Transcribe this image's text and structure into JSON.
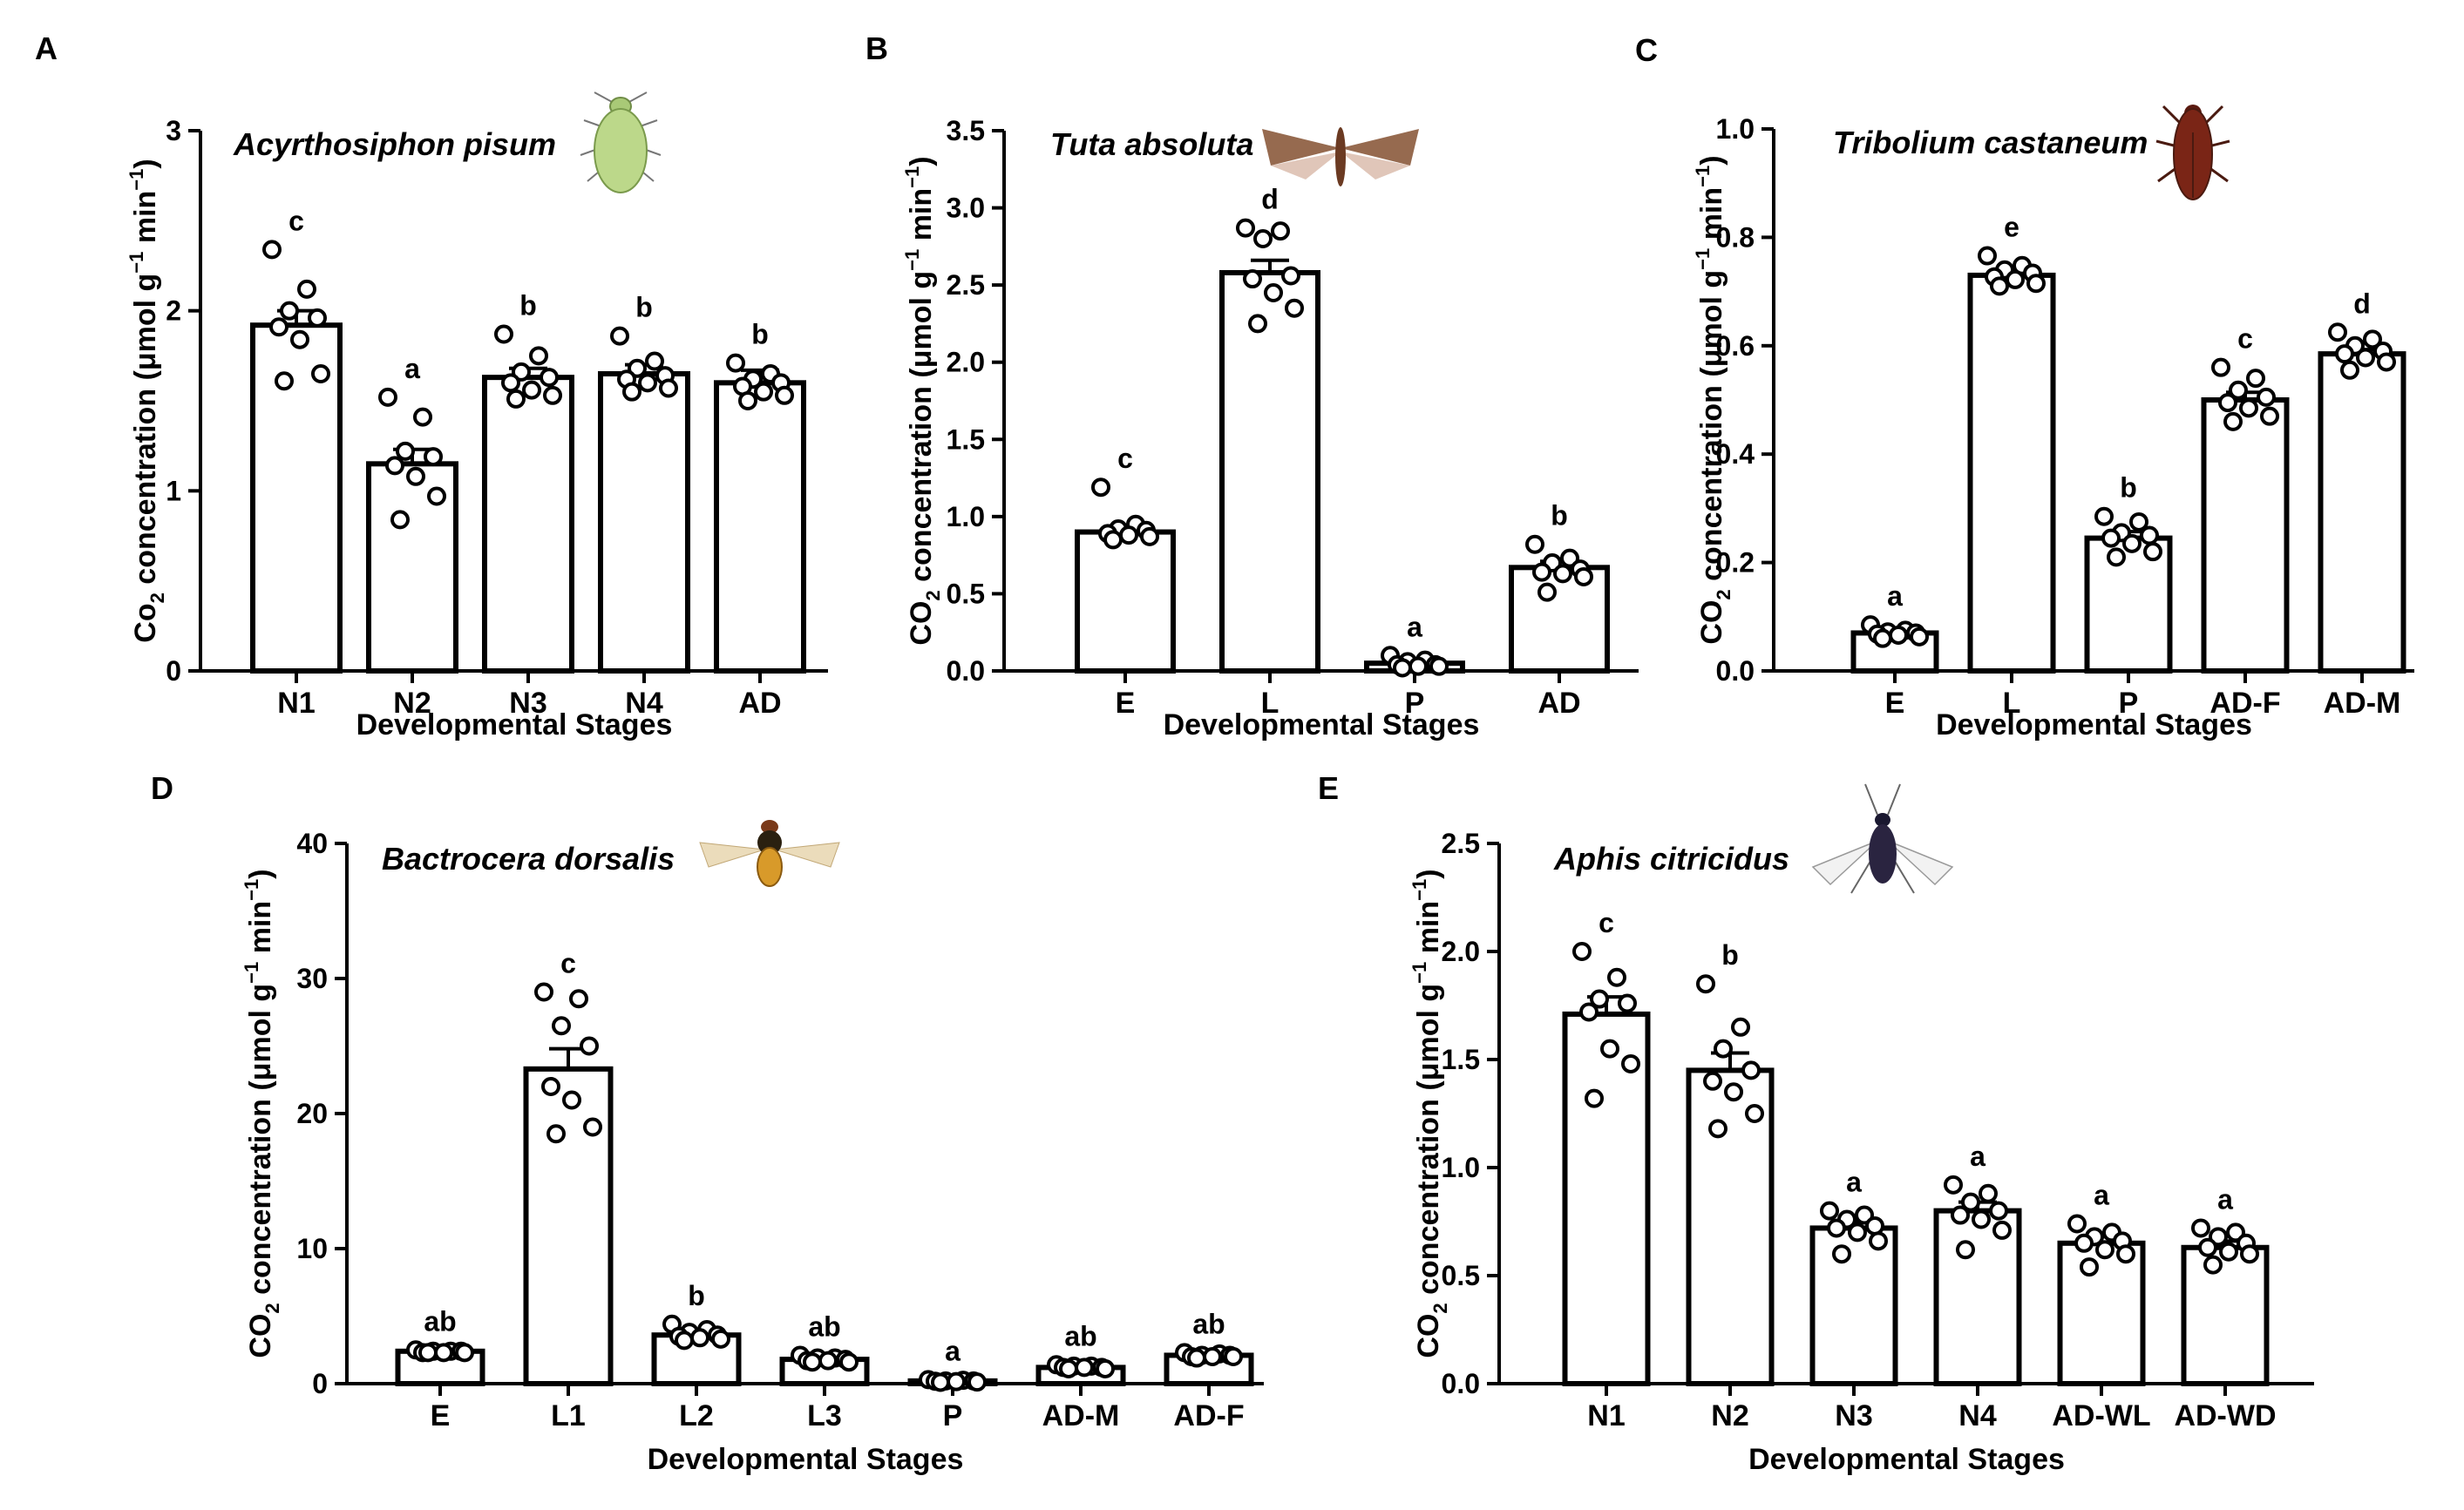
{
  "chart_data": [
    {
      "panel": "A",
      "type": "bar",
      "species": "Acyrthosiphon pisum",
      "title": "Acyrthosiphon pisum",
      "xlabel": "Developmental Stages",
      "ylabel": {
        "prefix": "Co",
        "sub": "2",
        "mid": " concentration (μmol g",
        "sup1": "−1",
        "mid2": " min",
        "sup2": "−1",
        "suffix": ")"
      },
      "ylim": [
        0,
        3
      ],
      "yticks": [
        0,
        1,
        2,
        3
      ],
      "ytick_labels": [
        "0",
        "1",
        "2",
        "3"
      ],
      "categories": [
        "N1",
        "N2",
        "N3",
        "N4",
        "AD"
      ],
      "values": [
        1.92,
        1.15,
        1.63,
        1.65,
        1.6
      ],
      "sem": [
        0.08,
        0.08,
        0.05,
        0.05,
        0.07
      ],
      "letters": [
        "c",
        "a",
        "b",
        "b",
        "b"
      ],
      "points": [
        [
          2.34,
          2.12,
          2.0,
          1.96,
          1.91,
          1.84,
          1.65,
          1.61
        ],
        [
          1.52,
          1.41,
          1.22,
          1.19,
          1.14,
          1.08,
          0.97,
          0.84
        ],
        [
          1.87,
          1.75,
          1.66,
          1.63,
          1.6,
          1.56,
          1.53,
          1.51
        ],
        [
          1.86,
          1.72,
          1.68,
          1.64,
          1.62,
          1.6,
          1.57,
          1.55
        ],
        [
          1.71,
          1.65,
          1.62,
          1.6,
          1.58,
          1.55,
          1.53,
          1.5
        ]
      ]
    },
    {
      "panel": "B",
      "type": "bar",
      "species": "Tuta absoluta",
      "title": "Tuta absoluta",
      "xlabel": "Developmental Stages",
      "ylabel": {
        "prefix": "CO",
        "sub": "2",
        "mid": " concentration (μmol g",
        "sup1": "−1",
        "mid2": " min",
        "sup2": "−1",
        "suffix": ")"
      },
      "ylim": [
        0,
        3.5
      ],
      "yticks": [
        0,
        0.5,
        1,
        1.5,
        2,
        2.5,
        3,
        3.5
      ],
      "ytick_labels": [
        "0.0",
        "0.5",
        "1.0",
        "1.5",
        "2.0",
        "2.5",
        "3.0",
        "3.5"
      ],
      "categories": [
        "E",
        "L",
        "P",
        "AD"
      ],
      "values": [
        0.9,
        2.58,
        0.05,
        0.67
      ],
      "sem": [
        0.03,
        0.08,
        0.01,
        0.04
      ],
      "letters": [
        "c",
        "d",
        "a",
        "b"
      ],
      "points": [
        [
          1.19,
          0.95,
          0.92,
          0.91,
          0.89,
          0.88,
          0.87,
          0.85
        ],
        [
          2.87,
          2.85,
          2.8,
          2.56,
          2.54,
          2.45,
          2.35,
          2.25
        ],
        [
          0.1,
          0.07,
          0.06,
          0.04,
          0.04,
          0.03,
          0.03,
          0.02
        ],
        [
          0.82,
          0.73,
          0.7,
          0.66,
          0.64,
          0.63,
          0.61,
          0.51
        ]
      ]
    },
    {
      "panel": "C",
      "type": "bar",
      "species": "Tribolium castaneum",
      "title": "Tribolium castaneum",
      "xlabel": "Developmental Stages",
      "ylabel": {
        "prefix": "CO",
        "sub": "2",
        "mid": " concentration (μmol g",
        "sup1": "−1",
        "mid2": " min",
        "sup2": "−1",
        "suffix": ")"
      },
      "ylim": [
        0,
        1.0
      ],
      "yticks": [
        0,
        0.2,
        0.4,
        0.6,
        0.8,
        1.0
      ],
      "ytick_labels": [
        "0.0",
        "0.2",
        "0.4",
        "0.6",
        "0.8",
        "1.0"
      ],
      "categories": [
        "E",
        "L",
        "P",
        "AD-F",
        "AD-M"
      ],
      "values": [
        0.07,
        0.73,
        0.245,
        0.5,
        0.585
      ],
      "sem": [
        0.005,
        0.008,
        0.012,
        0.014,
        0.008
      ],
      "letters": [
        "a",
        "e",
        "b",
        "c",
        "d"
      ],
      "points": [
        [
          0.085,
          0.075,
          0.072,
          0.07,
          0.068,
          0.066,
          0.063,
          0.06
        ],
        [
          0.766,
          0.748,
          0.74,
          0.734,
          0.727,
          0.722,
          0.715,
          0.71
        ],
        [
          0.285,
          0.275,
          0.255,
          0.25,
          0.245,
          0.235,
          0.22,
          0.21
        ],
        [
          0.56,
          0.54,
          0.518,
          0.505,
          0.495,
          0.485,
          0.47,
          0.46
        ],
        [
          0.625,
          0.612,
          0.6,
          0.59,
          0.585,
          0.578,
          0.57,
          0.555
        ]
      ]
    },
    {
      "panel": "D",
      "type": "bar",
      "species": "Bactrocera dorsalis",
      "title": "Bactrocera dorsalis",
      "xlabel": "Developmental Stages",
      "ylabel": {
        "prefix": "CO",
        "sub": "2",
        "mid": " concentration (μmol g",
        "sup1": "−1",
        "mid2": " min",
        "sup2": "−1",
        "suffix": ")"
      },
      "ylim": [
        0,
        40
      ],
      "yticks": [
        0,
        10,
        20,
        30,
        40
      ],
      "ytick_labels": [
        "0",
        "10",
        "20",
        "30",
        "40"
      ],
      "categories": [
        "E",
        "L1",
        "L2",
        "L3",
        "P",
        "AD-M",
        "AD-F"
      ],
      "values": [
        2.4,
        23.3,
        3.6,
        1.8,
        0.2,
        1.2,
        2.1
      ],
      "sem": [
        0.1,
        1.5,
        0.2,
        0.1,
        0.05,
        0.1,
        0.1
      ],
      "letters": [
        "ab",
        "c",
        "b",
        "ab",
        "a",
        "ab",
        "ab"
      ],
      "points": [
        [
          2.5,
          2.4,
          2.4,
          2.4,
          2.3,
          2.3,
          2.3,
          2.3
        ],
        [
          29.0,
          28.5,
          26.5,
          25.0,
          22.0,
          21.0,
          19.0,
          18.5
        ],
        [
          4.4,
          4.0,
          3.8,
          3.6,
          3.5,
          3.4,
          3.3,
          3.2
        ],
        [
          2.1,
          1.9,
          1.9,
          1.8,
          1.7,
          1.7,
          1.6,
          1.6
        ],
        [
          0.3,
          0.25,
          0.2,
          0.2,
          0.18,
          0.15,
          0.12,
          0.1
        ],
        [
          1.4,
          1.3,
          1.3,
          1.2,
          1.2,
          1.2,
          1.1,
          1.1
        ],
        [
          2.3,
          2.2,
          2.1,
          2.1,
          2.0,
          2.0,
          2.0,
          1.9
        ]
      ]
    },
    {
      "panel": "E",
      "type": "bar",
      "species": "Aphis citricidus",
      "title": "Aphis citricidus",
      "xlabel": "Developmental Stages",
      "ylabel": {
        "prefix": "CO",
        "sub": "2",
        "mid": " concentration (μmol g",
        "sup1": "−1",
        "mid2": " min",
        "sup2": "−1",
        "suffix": ")"
      },
      "ylim": [
        0,
        2.5
      ],
      "yticks": [
        0,
        0.5,
        1.0,
        1.5,
        2.0,
        2.5
      ],
      "ytick_labels": [
        "0.0",
        "0.5",
        "1.0",
        "1.5",
        "2.0",
        "2.5"
      ],
      "categories": [
        "N1",
        "N2",
        "N3",
        "N4",
        "AD-WL",
        "AD-WD"
      ],
      "values": [
        1.71,
        1.45,
        0.72,
        0.8,
        0.65,
        0.63
      ],
      "sem": [
        0.08,
        0.08,
        0.03,
        0.04,
        0.03,
        0.03
      ],
      "letters": [
        "c",
        "b",
        "a",
        "a",
        "a",
        "a"
      ],
      "points": [
        [
          2.0,
          1.88,
          1.78,
          1.76,
          1.72,
          1.55,
          1.48,
          1.32
        ],
        [
          1.85,
          1.65,
          1.55,
          1.45,
          1.4,
          1.35,
          1.25,
          1.18
        ],
        [
          0.8,
          0.78,
          0.76,
          0.73,
          0.72,
          0.7,
          0.66,
          0.6
        ],
        [
          0.92,
          0.88,
          0.84,
          0.8,
          0.78,
          0.76,
          0.71,
          0.62
        ],
        [
          0.74,
          0.7,
          0.68,
          0.66,
          0.65,
          0.62,
          0.6,
          0.54
        ],
        [
          0.72,
          0.7,
          0.68,
          0.65,
          0.63,
          0.61,
          0.6,
          0.55
        ]
      ]
    }
  ],
  "colors": {
    "bar_fill": "#ffffff",
    "bar_stroke": "#000000",
    "point_stroke": "#000000",
    "axis": "#000000",
    "aphid_green": "#bcd88a",
    "moth_brown": "#8b5a3c",
    "beetle_red": "#7a2516",
    "fly_orange": "#d89a2a",
    "aphid_dark": "#2a2440"
  }
}
